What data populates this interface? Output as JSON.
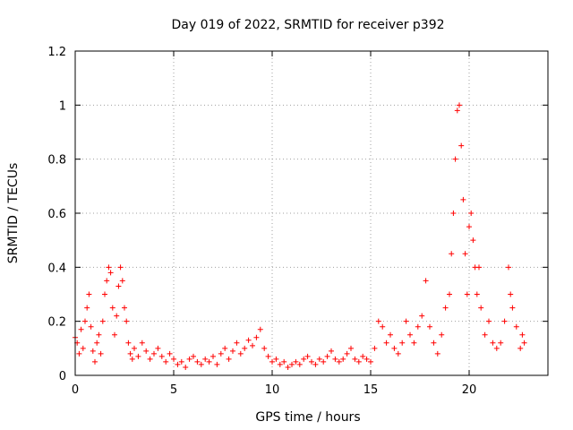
{
  "chart_data": {
    "type": "scatter",
    "title": "Day 019 of 2022, SRMTID for receiver p392",
    "xlabel": "GPS time / hours",
    "ylabel": "SRMTID / TECUs",
    "xlim": [
      0,
      24
    ],
    "ylim": [
      0,
      1.2
    ],
    "xticks": [
      0,
      5,
      10,
      15,
      20
    ],
    "yticks": [
      0,
      0.2,
      0.4,
      0.6,
      0.8,
      1,
      1.2
    ],
    "ytick_labels": [
      "0",
      "0.2",
      "0.4",
      "0.6",
      "0.8",
      "1",
      "1.2"
    ],
    "grid": true,
    "marker": "+",
    "color": "#ff0000",
    "series": [
      {
        "name": "SRMTID",
        "points": [
          [
            0.0,
            0.14
          ],
          [
            0.1,
            0.12
          ],
          [
            0.2,
            0.08
          ],
          [
            0.3,
            0.17
          ],
          [
            0.4,
            0.1
          ],
          [
            0.5,
            0.2
          ],
          [
            0.6,
            0.25
          ],
          [
            0.7,
            0.3
          ],
          [
            0.8,
            0.18
          ],
          [
            0.9,
            0.09
          ],
          [
            1.0,
            0.05
          ],
          [
            1.1,
            0.12
          ],
          [
            1.2,
            0.15
          ],
          [
            1.3,
            0.08
          ],
          [
            1.4,
            0.2
          ],
          [
            1.5,
            0.3
          ],
          [
            1.6,
            0.35
          ],
          [
            1.7,
            0.4
          ],
          [
            1.8,
            0.38
          ],
          [
            1.9,
            0.25
          ],
          [
            2.0,
            0.15
          ],
          [
            2.1,
            0.22
          ],
          [
            2.2,
            0.33
          ],
          [
            2.3,
            0.4
          ],
          [
            2.4,
            0.35
          ],
          [
            2.5,
            0.25
          ],
          [
            2.6,
            0.2
          ],
          [
            2.7,
            0.12
          ],
          [
            2.8,
            0.08
          ],
          [
            2.9,
            0.06
          ],
          [
            3.0,
            0.1
          ],
          [
            3.2,
            0.07
          ],
          [
            3.4,
            0.12
          ],
          [
            3.6,
            0.09
          ],
          [
            3.8,
            0.06
          ],
          [
            4.0,
            0.08
          ],
          [
            4.2,
            0.1
          ],
          [
            4.4,
            0.07
          ],
          [
            4.6,
            0.05
          ],
          [
            4.8,
            0.08
          ],
          [
            5.0,
            0.06
          ],
          [
            5.2,
            0.04
          ],
          [
            5.4,
            0.05
          ],
          [
            5.6,
            0.03
          ],
          [
            5.8,
            0.06
          ],
          [
            6.0,
            0.07
          ],
          [
            6.2,
            0.05
          ],
          [
            6.4,
            0.04
          ],
          [
            6.6,
            0.06
          ],
          [
            6.8,
            0.05
          ],
          [
            7.0,
            0.07
          ],
          [
            7.2,
            0.04
          ],
          [
            7.4,
            0.08
          ],
          [
            7.6,
            0.1
          ],
          [
            7.8,
            0.06
          ],
          [
            8.0,
            0.09
          ],
          [
            8.2,
            0.12
          ],
          [
            8.4,
            0.08
          ],
          [
            8.6,
            0.1
          ],
          [
            8.8,
            0.13
          ],
          [
            9.0,
            0.11
          ],
          [
            9.2,
            0.14
          ],
          [
            9.4,
            0.17
          ],
          [
            9.6,
            0.1
          ],
          [
            9.8,
            0.07
          ],
          [
            10.0,
            0.05
          ],
          [
            10.2,
            0.06
          ],
          [
            10.4,
            0.04
          ],
          [
            10.6,
            0.05
          ],
          [
            10.8,
            0.03
          ],
          [
            11.0,
            0.04
          ],
          [
            11.2,
            0.05
          ],
          [
            11.4,
            0.04
          ],
          [
            11.6,
            0.06
          ],
          [
            11.8,
            0.07
          ],
          [
            12.0,
            0.05
          ],
          [
            12.2,
            0.04
          ],
          [
            12.4,
            0.06
          ],
          [
            12.6,
            0.05
          ],
          [
            12.8,
            0.07
          ],
          [
            13.0,
            0.09
          ],
          [
            13.2,
            0.06
          ],
          [
            13.4,
            0.05
          ],
          [
            13.6,
            0.06
          ],
          [
            13.8,
            0.08
          ],
          [
            14.0,
            0.1
          ],
          [
            14.2,
            0.06
          ],
          [
            14.4,
            0.05
          ],
          [
            14.6,
            0.07
          ],
          [
            14.8,
            0.06
          ],
          [
            15.0,
            0.05
          ],
          [
            15.2,
            0.1
          ],
          [
            15.4,
            0.2
          ],
          [
            15.6,
            0.18
          ],
          [
            15.8,
            0.12
          ],
          [
            16.0,
            0.15
          ],
          [
            16.2,
            0.1
          ],
          [
            16.4,
            0.08
          ],
          [
            16.6,
            0.12
          ],
          [
            16.8,
            0.2
          ],
          [
            17.0,
            0.15
          ],
          [
            17.2,
            0.12
          ],
          [
            17.4,
            0.18
          ],
          [
            17.6,
            0.22
          ],
          [
            17.8,
            0.35
          ],
          [
            18.0,
            0.18
          ],
          [
            18.2,
            0.12
          ],
          [
            18.4,
            0.08
          ],
          [
            18.6,
            0.15
          ],
          [
            18.8,
            0.25
          ],
          [
            19.0,
            0.3
          ],
          [
            19.1,
            0.45
          ],
          [
            19.2,
            0.6
          ],
          [
            19.3,
            0.8
          ],
          [
            19.4,
            0.98
          ],
          [
            19.5,
            1.0
          ],
          [
            19.6,
            0.85
          ],
          [
            19.7,
            0.65
          ],
          [
            19.8,
            0.45
          ],
          [
            19.9,
            0.3
          ],
          [
            20.0,
            0.55
          ],
          [
            20.1,
            0.6
          ],
          [
            20.2,
            0.5
          ],
          [
            20.3,
            0.4
          ],
          [
            20.4,
            0.3
          ],
          [
            20.5,
            0.4
          ],
          [
            20.6,
            0.25
          ],
          [
            20.8,
            0.15
          ],
          [
            21.0,
            0.2
          ],
          [
            21.2,
            0.12
          ],
          [
            21.4,
            0.1
          ],
          [
            21.6,
            0.12
          ],
          [
            21.8,
            0.2
          ],
          [
            22.0,
            0.4
          ],
          [
            22.1,
            0.3
          ],
          [
            22.2,
            0.25
          ],
          [
            22.4,
            0.18
          ],
          [
            22.6,
            0.1
          ],
          [
            22.7,
            0.15
          ],
          [
            22.8,
            0.12
          ]
        ]
      }
    ]
  }
}
